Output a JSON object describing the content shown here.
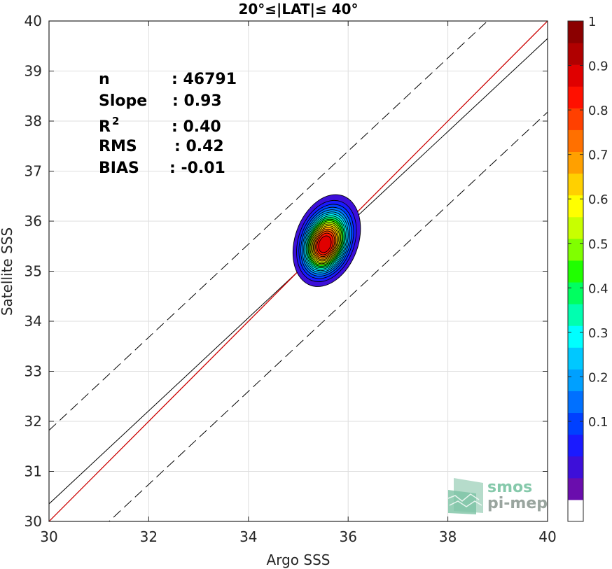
{
  "chart_data": {
    "type": "scatter",
    "subtype": "density contour",
    "title": "20°≤|LAT|≤ 40°",
    "xlabel": "Argo SSS",
    "ylabel": "Satellite SSS",
    "xlim": [
      30,
      40
    ],
    "ylim": [
      30,
      40
    ],
    "xticks": [
      "30",
      "32",
      "34",
      "36",
      "38",
      "40"
    ],
    "yticks": [
      "30",
      "31",
      "32",
      "33",
      "34",
      "35",
      "36",
      "37",
      "38",
      "39",
      "40"
    ],
    "grid": true,
    "stats": [
      {
        "label": "n",
        "value": ": 46791"
      },
      {
        "label": "Slope",
        "value": ": 0.93"
      },
      {
        "label": "R",
        "sup": "2",
        "value": ": 0.40"
      },
      {
        "label": "RMS",
        "value": ": 0.42"
      },
      {
        "label": "BIAS",
        "value": ": -0.01"
      }
    ],
    "identity_line": {
      "slope": 1,
      "intercept": 0,
      "color": "#cc0000"
    },
    "fit_line": {
      "slope": 0.93,
      "intercept": 2.45,
      "color": "#000000"
    },
    "fit_bounds_offset": 1.47,
    "density_peak": {
      "x": 35.5,
      "y": 35.5
    },
    "density_levels": [
      0.05,
      0.1,
      0.15,
      0.2,
      0.25,
      0.3,
      0.35,
      0.4,
      0.45,
      0.5,
      0.55,
      0.6,
      0.65,
      0.7,
      0.75,
      0.8,
      0.85,
      0.9,
      0.95
    ],
    "colorbar": {
      "ticks": [
        "0.1",
        "0.2",
        "0.3",
        "0.4",
        "0.5",
        "0.6",
        "0.7",
        "0.8",
        "0.9",
        "1"
      ],
      "tick_values": [
        0.1,
        0.2,
        0.3,
        0.4,
        0.5,
        0.6,
        0.7,
        0.8,
        0.9,
        1.0
      ],
      "colors": [
        "#ffffff",
        "#6a0dad",
        "#3d0fd9",
        "#1a1aff",
        "#0040ff",
        "#0070ff",
        "#00a0ff",
        "#00c8ff",
        "#00ffff",
        "#00ffb0",
        "#00ff60",
        "#20ff00",
        "#80ff00",
        "#c8ff00",
        "#ffff00",
        "#ffd000",
        "#ffa000",
        "#ff7000",
        "#ff4000",
        "#ff1000",
        "#e00000",
        "#b00000",
        "#8b0000"
      ]
    }
  },
  "logo": {
    "line1": "smos",
    "line2": "pi-mep"
  }
}
